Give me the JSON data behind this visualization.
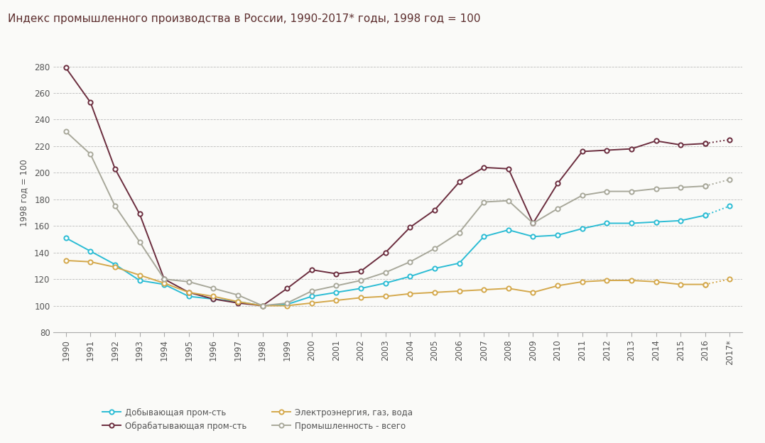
{
  "title": "Индекс промышленного производства в России, 1990-2017* годы, 1998 год = 100",
  "ylabel": "1998 год = 100",
  "years": [
    "1990",
    "1991",
    "1992",
    "1993",
    "1994",
    "1995",
    "1996",
    "1997",
    "1998",
    "1999",
    "2000",
    "2001",
    "2002",
    "2003",
    "2004",
    "2005",
    "2006",
    "2007",
    "2008",
    "2009",
    "2010",
    "2011",
    "2012",
    "2013",
    "2014",
    "2015",
    "2016",
    "2017*"
  ],
  "mining": [
    151,
    141,
    131,
    119,
    116,
    107,
    105,
    103,
    100,
    101,
    107,
    110,
    113,
    117,
    122,
    128,
    132,
    152,
    157,
    152,
    153,
    158,
    162,
    162,
    163,
    164,
    168,
    175
  ],
  "manufacturing": [
    279,
    253,
    203,
    169,
    120,
    110,
    105,
    102,
    100,
    113,
    127,
    124,
    126,
    140,
    159,
    172,
    193,
    204,
    203,
    162,
    192,
    216,
    217,
    218,
    224,
    221,
    222,
    225
  ],
  "energy": [
    134,
    133,
    129,
    123,
    117,
    110,
    107,
    103,
    100,
    100,
    102,
    104,
    106,
    107,
    109,
    110,
    111,
    112,
    113,
    110,
    115,
    118,
    119,
    119,
    118,
    116,
    116,
    120
  ],
  "total": [
    231,
    214,
    175,
    148,
    120,
    118,
    113,
    108,
    100,
    102,
    111,
    115,
    119,
    125,
    133,
    143,
    155,
    178,
    179,
    162,
    173,
    183,
    186,
    186,
    188,
    189,
    190,
    195
  ],
  "mining_color": "#2BBCD4",
  "manufacturing_color": "#6B2D3E",
  "energy_color": "#D4A84B",
  "total_color": "#A8A89A",
  "ylim": [
    80,
    290
  ],
  "yticks": [
    80,
    100,
    120,
    140,
    160,
    180,
    200,
    220,
    240,
    260,
    280
  ],
  "bg_color": "#FAFAF8",
  "title_color": "#5C2D2D",
  "legend_labels": [
    "Добывающая пром-сть",
    "Обрабатывающая пром-сть",
    "Электроэнергия, газ, вода",
    "Промышленность - всего"
  ]
}
